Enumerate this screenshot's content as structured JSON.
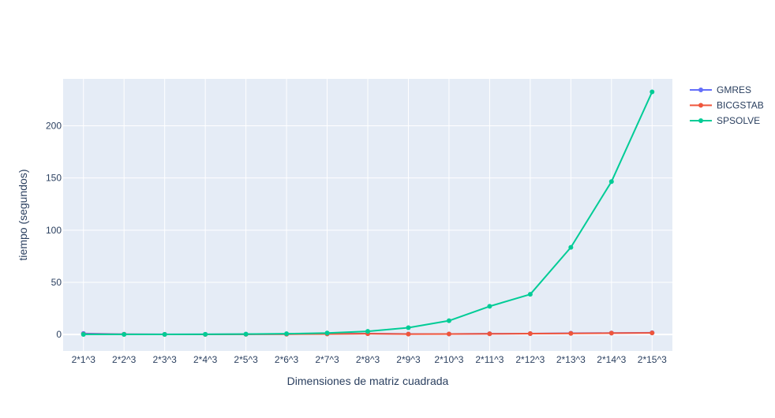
{
  "chart_data": {
    "type": "line",
    "title": "",
    "xlabel": "Dimensiones de matriz cuadrada",
    "ylabel": "tiempo (segundos)",
    "categories": [
      "2*1^3",
      "2*2^3",
      "2*3^3",
      "2*4^3",
      "2*5^3",
      "2*6^3",
      "2*7^3",
      "2*8^3",
      "2*9^3",
      "2*10^3",
      "2*11^3",
      "2*12^3",
      "2*13^3",
      "2*14^3",
      "2*15^3"
    ],
    "ylim": [
      -15.8,
      245
    ],
    "yticks": [
      0,
      50,
      100,
      150,
      200
    ],
    "grid": true,
    "legend_position": "top-right",
    "plot_background": "#e5ecf6",
    "series": [
      {
        "name": "GMRES",
        "color": "#636efa",
        "values": [
          0.9,
          0.3,
          0.2,
          0.2,
          0.3,
          0.4,
          0.6,
          0.8,
          0.5,
          0.5,
          0.7,
          0.8,
          1.2,
          1.4,
          1.7
        ]
      },
      {
        "name": "BICGSTAB",
        "color": "#ef553b",
        "values": [
          0.3,
          0.2,
          0.1,
          0.1,
          0.2,
          0.3,
          0.5,
          0.7,
          0.4,
          0.5,
          0.6,
          0.8,
          1.0,
          1.3,
          1.5
        ]
      },
      {
        "name": "SPSOLVE",
        "color": "#00cc96",
        "values": [
          0.05,
          0.1,
          0.1,
          0.2,
          0.4,
          0.7,
          1.4,
          3.0,
          6.5,
          13.2,
          27.0,
          38.5,
          83.5,
          146.5,
          232.5
        ]
      }
    ]
  }
}
